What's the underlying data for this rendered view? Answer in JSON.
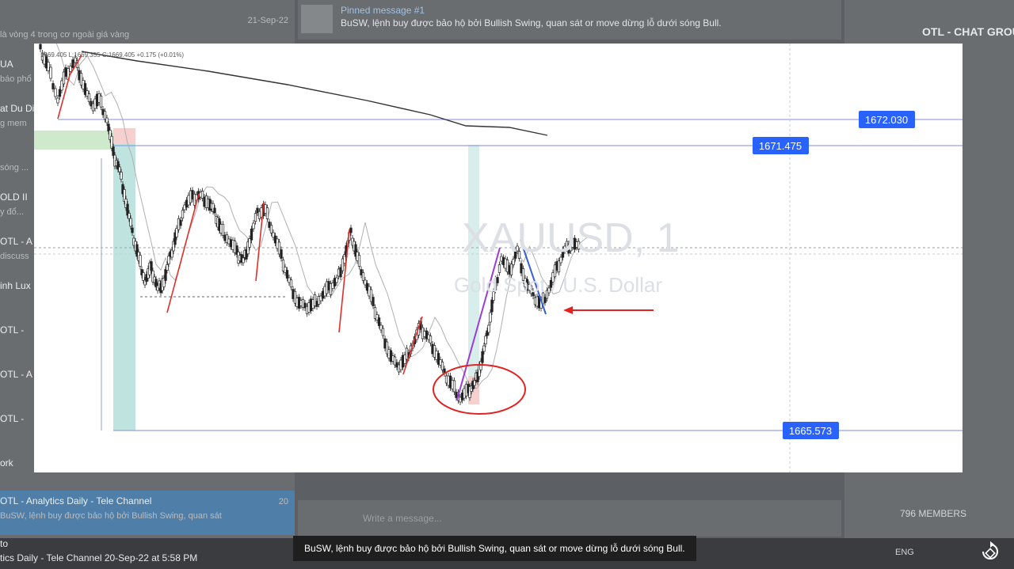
{
  "background": {
    "pinned": {
      "title": "Pinned message #1",
      "text": "BuSW, lệnh buy được bảo hộ bởi Bullish Swing, quan sát or move dừng lỗ dưới sóng Bull."
    },
    "chat_list": [
      {
        "title": "",
        "preview": "là vòng 4 trong cơ ngoài giá vàng",
        "date": "21-Sep-22"
      },
      {
        "title": "UA",
        "preview": "báo phổ",
        "date": ""
      },
      {
        "title": "at Du Di",
        "preview": "g mem",
        "date": ""
      },
      {
        "title": "",
        "preview": "sóng ...",
        "date": ""
      },
      {
        "title": "OLD II",
        "preview": "y đổ...",
        "date": ""
      },
      {
        "title": "OTL - A",
        "preview": "discuss",
        "date": ""
      },
      {
        "title": "inh Lux",
        "preview": "",
        "date": ""
      },
      {
        "title": "OTL -",
        "preview": "",
        "date": ""
      },
      {
        "title": "OTL - A",
        "preview": "",
        "date": ""
      },
      {
        "title": "OTL -",
        "preview": "",
        "date": ""
      },
      {
        "title": "ork",
        "preview": "",
        "date": ""
      },
      {
        "title": "OTL - Analytics Daily - Tele Channel",
        "preview": "BuSW, lệnh buy được bảo hộ bởi Bullish Swing, quan sát",
        "date": "20"
      }
    ],
    "right_panel": {
      "channel_name": "OTL - CHAT GROU",
      "members": "796 MEMBERS"
    },
    "composer_placeholder": "Write a message...",
    "taskbar_lang": "ENG",
    "bottom_caption": "to",
    "bottom_info": "tics Daily - Tele Channel   20-Sep-22 at 5:58 PM"
  },
  "chart": {
    "symbol": "XAUUSD, 1",
    "description": "Gold Spot / U.S. Dollar",
    "ohlc_header": "1669.405  L:1669.355  C:1669.405  +0.175 (+0.01%)",
    "price_labels": [
      "1672.030",
      "1671.475",
      "1665.573"
    ],
    "colors": {
      "label_bg": "#2962ff",
      "candle": "#222222",
      "bull_swing": "#e0302b",
      "impulse": "#9c3cd6",
      "pullback": "#3860d6",
      "ellipse": "#e02323",
      "arrow": "#e02323",
      "long_zone": "#bfe3df",
      "stop_zone": "#f4cccc"
    }
  },
  "subtitle": "BuSW, lệnh buy được bảo hộ bởi Bullish Swing, quan sát or move dừng lỗ dưới sóng Bull."
}
